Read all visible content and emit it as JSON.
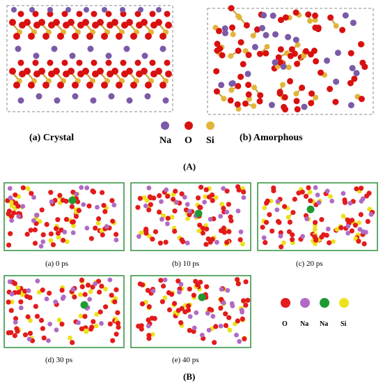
{
  "panel_A": {
    "label": "(A)",
    "crystal_caption": "(a) Crystal",
    "amorphous_caption": "(b) Amorphous",
    "legend": [
      {
        "label": "Na",
        "color": "#7b5aa8"
      },
      {
        "label": "O",
        "color": "#d81010"
      },
      {
        "label": "Si",
        "color": "#e3b43a"
      }
    ]
  },
  "panel_B": {
    "label": "(B)",
    "snapshots": [
      "(a) 0 ps",
      "(b) 10 ps",
      "(c) 20 ps",
      "(d) 30 ps",
      "(e) 40 ps"
    ],
    "legend": [
      {
        "label": "O",
        "color": "#e21b1b"
      },
      {
        "label": "Na",
        "color": "#b06ac4"
      },
      {
        "label": "Na",
        "color": "#1f9a32"
      },
      {
        "label": "Si",
        "color": "#ece11c"
      }
    ],
    "frame_color": "#2f8f3a"
  }
}
